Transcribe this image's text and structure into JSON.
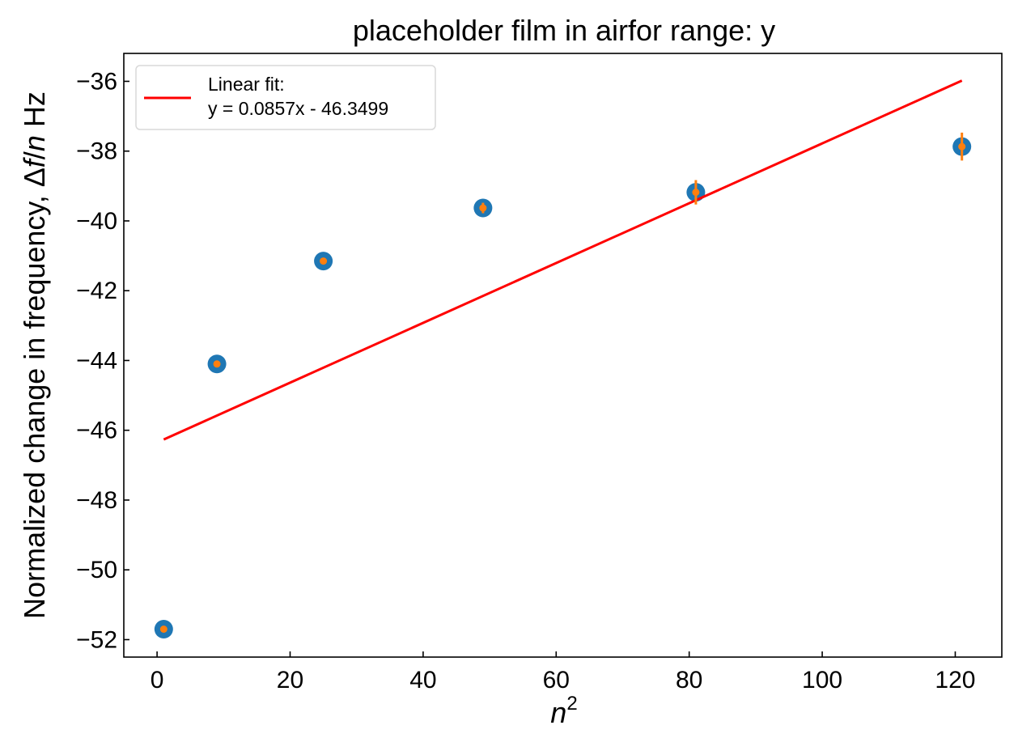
{
  "chart_data": {
    "type": "scatter",
    "title": "placeholder film in airfor range: y",
    "xlabel": "n",
    "xlabel_sup": "2",
    "ylabel_prefix": "Normalized change in frequency, Δ",
    "ylabel_f": "f",
    "ylabel_slash": "/",
    "ylabel_n": "n",
    "ylabel_suffix": " Hz",
    "xlim": [
      -5,
      127
    ],
    "ylim": [
      -52.5,
      -35.2
    ],
    "xticks": [
      0,
      20,
      40,
      60,
      80,
      100,
      120
    ],
    "xtick_labels": [
      "0",
      "20",
      "40",
      "60",
      "80",
      "100",
      "120"
    ],
    "yticks": [
      -36,
      -38,
      -40,
      -42,
      -44,
      -46,
      -48,
      -50,
      -52
    ],
    "ytick_labels": [
      "−36",
      "−38",
      "−40",
      "−42",
      "−44",
      "−46",
      "−48",
      "−50",
      "−52"
    ],
    "series": [
      {
        "kind": "points",
        "color": "#1f77b4",
        "x": [
          1,
          9,
          25,
          49,
          81,
          121
        ],
        "y": [
          -51.7,
          -44.1,
          -41.15,
          -39.63,
          -39.18,
          -37.87
        ]
      },
      {
        "kind": "errorbar",
        "color": "#ff7f0e",
        "x": [
          1,
          9,
          25,
          49,
          81,
          121
        ],
        "y": [
          -51.7,
          -44.1,
          -41.15,
          -39.63,
          -39.18,
          -37.87
        ],
        "yerr": [
          0.05,
          0.05,
          0.05,
          0.15,
          0.35,
          0.4
        ]
      },
      {
        "kind": "line",
        "name": "Linear fit:\ny = 0.0857x - 46.3499",
        "color": "#ff0000",
        "x": [
          1,
          121
        ],
        "y": [
          -46.2642,
          -35.9802
        ]
      }
    ],
    "legend": {
      "position": "top-left",
      "line1": "Linear fit:",
      "line2": "y = 0.0857x - 46.3499"
    },
    "grid": false
  }
}
